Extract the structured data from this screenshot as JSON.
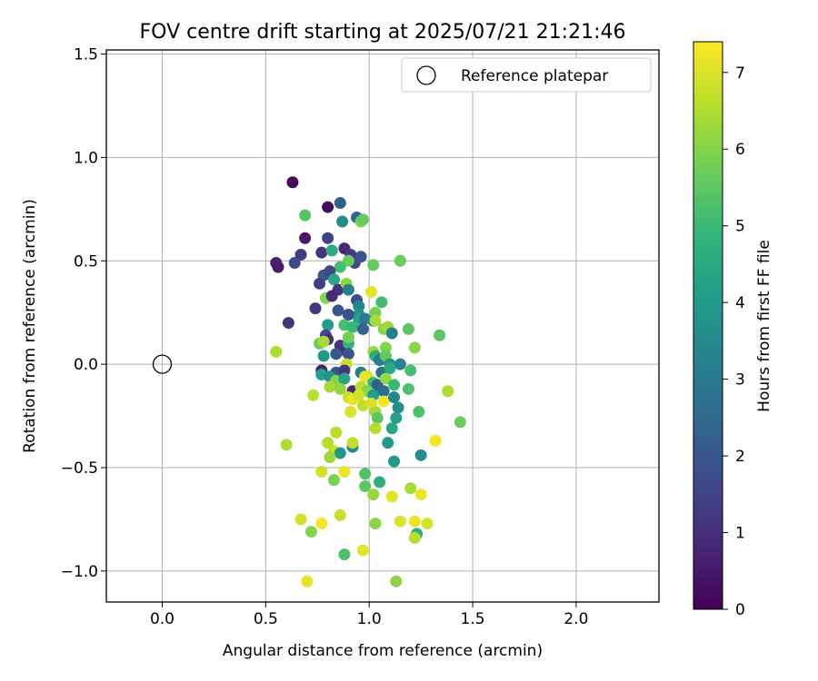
{
  "chart_data": {
    "type": "scatter",
    "title": "FOV centre drift starting at 2025/07/21 21:21:46",
    "xlabel": "Angular distance from reference (arcmin)",
    "ylabel": "Rotation from reference (arcmin)",
    "xlim": [
      -0.27,
      2.4
    ],
    "ylim": [
      -1.15,
      1.52
    ],
    "xticks": [
      0.0,
      0.5,
      1.0,
      1.5,
      2.0
    ],
    "xtick_labels": [
      "0.0",
      "0.5",
      "1.0",
      "1.5",
      "2.0"
    ],
    "yticks": [
      -1.0,
      -0.5,
      0.0,
      0.5,
      1.0,
      1.5
    ],
    "ytick_labels": [
      "−1.0",
      "−0.5",
      "0.0",
      "0.5",
      "1.0",
      "1.5"
    ],
    "grid": true,
    "legend": {
      "placement": "upper-right",
      "label": "Reference platepar"
    },
    "reference_point": {
      "x": 0.0,
      "y": 0.0
    },
    "colorbar": {
      "label": "Hours from first FF file",
      "range": [
        0,
        7.4
      ],
      "ticks": [
        0,
        1,
        2,
        3,
        4,
        5,
        6,
        7
      ],
      "tick_labels": [
        "0",
        "1",
        "2",
        "3",
        "4",
        "5",
        "6",
        "7"
      ],
      "colormap": "viridis",
      "colormap_stops": [
        "#440154",
        "#482878",
        "#3e4989",
        "#31688e",
        "#26828e",
        "#1f9e89",
        "#35b779",
        "#6ece58",
        "#b5de2b",
        "#fde725"
      ]
    },
    "points": [
      {
        "x": 0.63,
        "y": 0.88,
        "c": 0.2
      },
      {
        "x": 0.8,
        "y": 0.76,
        "c": 0.3
      },
      {
        "x": 0.86,
        "y": 0.78,
        "c": 2.2
      },
      {
        "x": 0.94,
        "y": 0.71,
        "c": 2.4
      },
      {
        "x": 0.69,
        "y": 0.72,
        "c": 5.4
      },
      {
        "x": 0.96,
        "y": 0.69,
        "c": 5.9
      },
      {
        "x": 0.97,
        "y": 0.7,
        "c": 5.6
      },
      {
        "x": 0.87,
        "y": 0.69,
        "c": 3.6
      },
      {
        "x": 0.69,
        "y": 0.61,
        "c": 0.5
      },
      {
        "x": 0.8,
        "y": 0.61,
        "c": 1.5
      },
      {
        "x": 0.55,
        "y": 0.49,
        "c": 0.7
      },
      {
        "x": 0.56,
        "y": 0.47,
        "c": 0.6
      },
      {
        "x": 0.67,
        "y": 0.53,
        "c": 1.3
      },
      {
        "x": 0.64,
        "y": 0.49,
        "c": 1.7
      },
      {
        "x": 0.77,
        "y": 0.54,
        "c": 1.1
      },
      {
        "x": 0.82,
        "y": 0.55,
        "c": 4.6
      },
      {
        "x": 0.88,
        "y": 0.56,
        "c": 0.8
      },
      {
        "x": 0.91,
        "y": 0.53,
        "c": 1.3
      },
      {
        "x": 0.93,
        "y": 0.49,
        "c": 1.6
      },
      {
        "x": 0.96,
        "y": 0.52,
        "c": 1.9
      },
      {
        "x": 0.9,
        "y": 0.5,
        "c": 5.7
      },
      {
        "x": 0.86,
        "y": 0.47,
        "c": 5.2
      },
      {
        "x": 1.02,
        "y": 0.48,
        "c": 5.6
      },
      {
        "x": 1.15,
        "y": 0.5,
        "c": 5.7
      },
      {
        "x": 0.78,
        "y": 0.43,
        "c": 2.1
      },
      {
        "x": 0.81,
        "y": 0.45,
        "c": 1.7
      },
      {
        "x": 0.83,
        "y": 0.41,
        "c": 4.4
      },
      {
        "x": 0.76,
        "y": 0.39,
        "c": 1.4
      },
      {
        "x": 0.85,
        "y": 0.36,
        "c": 1.1
      },
      {
        "x": 0.89,
        "y": 0.39,
        "c": 6.1
      },
      {
        "x": 0.9,
        "y": 0.36,
        "c": 3.2
      },
      {
        "x": 0.79,
        "y": 0.32,
        "c": 6.0
      },
      {
        "x": 0.82,
        "y": 0.33,
        "c": 0.9
      },
      {
        "x": 0.74,
        "y": 0.27,
        "c": 1.2
      },
      {
        "x": 0.85,
        "y": 0.26,
        "c": 1.9
      },
      {
        "x": 0.94,
        "y": 0.31,
        "c": 1.8
      },
      {
        "x": 0.95,
        "y": 0.28,
        "c": 3.4
      },
      {
        "x": 0.95,
        "y": 0.24,
        "c": 3.8
      },
      {
        "x": 1.01,
        "y": 0.35,
        "c": 7.1
      },
      {
        "x": 1.06,
        "y": 0.3,
        "c": 5.1
      },
      {
        "x": 0.9,
        "y": 0.24,
        "c": 2.0
      },
      {
        "x": 0.95,
        "y": 0.22,
        "c": 4.2
      },
      {
        "x": 0.98,
        "y": 0.22,
        "c": 3.0
      },
      {
        "x": 1.02,
        "y": 0.21,
        "c": 3.5
      },
      {
        "x": 1.03,
        "y": 0.25,
        "c": 5.9
      },
      {
        "x": 1.03,
        "y": 0.21,
        "c": 6.4
      },
      {
        "x": 0.61,
        "y": 0.2,
        "c": 1.1
      },
      {
        "x": 0.8,
        "y": 0.19,
        "c": 4.0
      },
      {
        "x": 0.88,
        "y": 0.19,
        "c": 5.2
      },
      {
        "x": 0.92,
        "y": 0.18,
        "c": 4.9
      },
      {
        "x": 0.97,
        "y": 0.17,
        "c": 2.3
      },
      {
        "x": 1.07,
        "y": 0.17,
        "c": 6.0
      },
      {
        "x": 1.09,
        "y": 0.18,
        "c": 6.3
      },
      {
        "x": 1.11,
        "y": 0.15,
        "c": 3.2
      },
      {
        "x": 1.19,
        "y": 0.17,
        "c": 5.5
      },
      {
        "x": 0.79,
        "y": 0.14,
        "c": 1.6
      },
      {
        "x": 0.8,
        "y": 0.12,
        "c": 1.0
      },
      {
        "x": 0.76,
        "y": 0.1,
        "c": 5.7
      },
      {
        "x": 0.78,
        "y": 0.11,
        "c": 6.4
      },
      {
        "x": 0.86,
        "y": 0.09,
        "c": 1.2
      },
      {
        "x": 0.87,
        "y": 0.07,
        "c": 0.9
      },
      {
        "x": 0.9,
        "y": 0.1,
        "c": 4.7
      },
      {
        "x": 0.9,
        "y": 0.13,
        "c": 5.8
      },
      {
        "x": 1.02,
        "y": 0.06,
        "c": 6.3
      },
      {
        "x": 1.08,
        "y": 0.08,
        "c": 6.0
      },
      {
        "x": 1.22,
        "y": 0.08,
        "c": 6.1
      },
      {
        "x": 1.34,
        "y": 0.14,
        "c": 5.5
      },
      {
        "x": 0.55,
        "y": 0.06,
        "c": 6.5
      },
      {
        "x": 0.78,
        "y": 0.04,
        "c": 3.9
      },
      {
        "x": 0.84,
        "y": 0.05,
        "c": 2.1
      },
      {
        "x": 0.9,
        "y": 0.05,
        "c": 1.9
      },
      {
        "x": 1.03,
        "y": 0.04,
        "c": 4.6
      },
      {
        "x": 1.05,
        "y": 0.02,
        "c": 3.0
      },
      {
        "x": 1.08,
        "y": 0.04,
        "c": 5.6
      },
      {
        "x": 1.1,
        "y": 0.0,
        "c": 3.7
      },
      {
        "x": 1.15,
        "y": 0.0,
        "c": 3.3
      },
      {
        "x": 0.89,
        "y": 0.0,
        "c": 6.8
      },
      {
        "x": 0.77,
        "y": -0.03,
        "c": 0.7
      },
      {
        "x": 0.77,
        "y": -0.05,
        "c": 4.2
      },
      {
        "x": 0.84,
        "y": -0.04,
        "c": 2.0
      },
      {
        "x": 0.88,
        "y": -0.03,
        "c": 1.2
      },
      {
        "x": 0.96,
        "y": -0.04,
        "c": 3.1
      },
      {
        "x": 0.99,
        "y": -0.06,
        "c": 6.7
      },
      {
        "x": 1.06,
        "y": -0.04,
        "c": 2.8
      },
      {
        "x": 1.1,
        "y": -0.02,
        "c": 4.5
      },
      {
        "x": 1.2,
        "y": -0.03,
        "c": 5.2
      },
      {
        "x": 0.81,
        "y": -0.06,
        "c": 3.8
      },
      {
        "x": 0.84,
        "y": -0.08,
        "c": 6.0
      },
      {
        "x": 0.88,
        "y": -0.07,
        "c": 4.3
      },
      {
        "x": 0.98,
        "y": -0.06,
        "c": 7.2
      },
      {
        "x": 1.02,
        "y": -0.09,
        "c": 4.9
      },
      {
        "x": 1.04,
        "y": -0.1,
        "c": 2.2
      },
      {
        "x": 1.08,
        "y": -0.07,
        "c": 6.2
      },
      {
        "x": 1.12,
        "y": -0.1,
        "c": 5.0
      },
      {
        "x": 0.81,
        "y": -0.11,
        "c": 6.4
      },
      {
        "x": 0.73,
        "y": -0.15,
        "c": 6.6
      },
      {
        "x": 0.86,
        "y": -0.12,
        "c": 6.2
      },
      {
        "x": 0.92,
        "y": -0.13,
        "c": 0.8
      },
      {
        "x": 0.96,
        "y": -0.11,
        "c": 6.6
      },
      {
        "x": 0.99,
        "y": -0.13,
        "c": 6.0
      },
      {
        "x": 1.02,
        "y": -0.15,
        "c": 4.1
      },
      {
        "x": 1.07,
        "y": -0.13,
        "c": 2.6
      },
      {
        "x": 1.19,
        "y": -0.12,
        "c": 5.3
      },
      {
        "x": 0.9,
        "y": -0.16,
        "c": 6.8
      },
      {
        "x": 0.92,
        "y": -0.17,
        "c": 7.2
      },
      {
        "x": 0.95,
        "y": -0.15,
        "c": 6.9
      },
      {
        "x": 0.97,
        "y": -0.2,
        "c": 6.7
      },
      {
        "x": 1.01,
        "y": -0.19,
        "c": 7.0
      },
      {
        "x": 1.07,
        "y": -0.18,
        "c": 7.3
      },
      {
        "x": 1.12,
        "y": -0.16,
        "c": 3.4
      },
      {
        "x": 1.14,
        "y": -0.21,
        "c": 3.7
      },
      {
        "x": 1.38,
        "y": -0.13,
        "c": 6.5
      },
      {
        "x": 0.91,
        "y": -0.23,
        "c": 7.0
      },
      {
        "x": 1.03,
        "y": -0.23,
        "c": 6.4
      },
      {
        "x": 1.04,
        "y": -0.26,
        "c": 5.5
      },
      {
        "x": 1.13,
        "y": -0.26,
        "c": 4.2
      },
      {
        "x": 1.24,
        "y": -0.23,
        "c": 5.3
      },
      {
        "x": 1.44,
        "y": -0.28,
        "c": 5.7
      },
      {
        "x": 0.84,
        "y": -0.33,
        "c": 6.6
      },
      {
        "x": 1.03,
        "y": -0.31,
        "c": 6.6
      },
      {
        "x": 1.11,
        "y": -0.31,
        "c": 4.4
      },
      {
        "x": 0.6,
        "y": -0.39,
        "c": 6.5
      },
      {
        "x": 0.8,
        "y": -0.38,
        "c": 6.6
      },
      {
        "x": 0.83,
        "y": -0.42,
        "c": 6.8
      },
      {
        "x": 0.86,
        "y": -0.43,
        "c": 3.9
      },
      {
        "x": 0.92,
        "y": -0.4,
        "c": 3.5
      },
      {
        "x": 0.92,
        "y": -0.38,
        "c": 6.7
      },
      {
        "x": 1.09,
        "y": -0.38,
        "c": 4.0
      },
      {
        "x": 1.25,
        "y": -0.44,
        "c": 3.6
      },
      {
        "x": 1.32,
        "y": -0.37,
        "c": 7.3
      },
      {
        "x": 0.81,
        "y": -0.45,
        "c": 6.3
      },
      {
        "x": 0.77,
        "y": -0.52,
        "c": 6.9
      },
      {
        "x": 0.88,
        "y": -0.52,
        "c": 7.2
      },
      {
        "x": 0.83,
        "y": -0.56,
        "c": 5.9
      },
      {
        "x": 0.98,
        "y": -0.53,
        "c": 5.3
      },
      {
        "x": 1.12,
        "y": -0.47,
        "c": 4.0
      },
      {
        "x": 1.05,
        "y": -0.57,
        "c": 4.6
      },
      {
        "x": 0.98,
        "y": -0.59,
        "c": 5.5
      },
      {
        "x": 1.02,
        "y": -0.63,
        "c": 6.2
      },
      {
        "x": 1.11,
        "y": -0.64,
        "c": 7.1
      },
      {
        "x": 1.2,
        "y": -0.6,
        "c": 6.4
      },
      {
        "x": 1.25,
        "y": -0.63,
        "c": 7.2
      },
      {
        "x": 0.86,
        "y": -0.73,
        "c": 6.8
      },
      {
        "x": 0.67,
        "y": -0.75,
        "c": 6.9
      },
      {
        "x": 0.77,
        "y": -0.77,
        "c": 7.3
      },
      {
        "x": 0.72,
        "y": -0.81,
        "c": 6.0
      },
      {
        "x": 1.03,
        "y": -0.77,
        "c": 6.1
      },
      {
        "x": 1.15,
        "y": -0.76,
        "c": 7.0
      },
      {
        "x": 1.22,
        "y": -0.76,
        "c": 7.2
      },
      {
        "x": 1.28,
        "y": -0.77,
        "c": 6.9
      },
      {
        "x": 1.23,
        "y": -0.82,
        "c": 4.7
      },
      {
        "x": 1.22,
        "y": -0.84,
        "c": 6.6
      },
      {
        "x": 0.88,
        "y": -0.92,
        "c": 5.3
      },
      {
        "x": 0.97,
        "y": -0.9,
        "c": 7.1
      },
      {
        "x": 0.7,
        "y": -1.05,
        "c": 7.1
      },
      {
        "x": 1.13,
        "y": -1.05,
        "c": 6.1
      }
    ]
  }
}
